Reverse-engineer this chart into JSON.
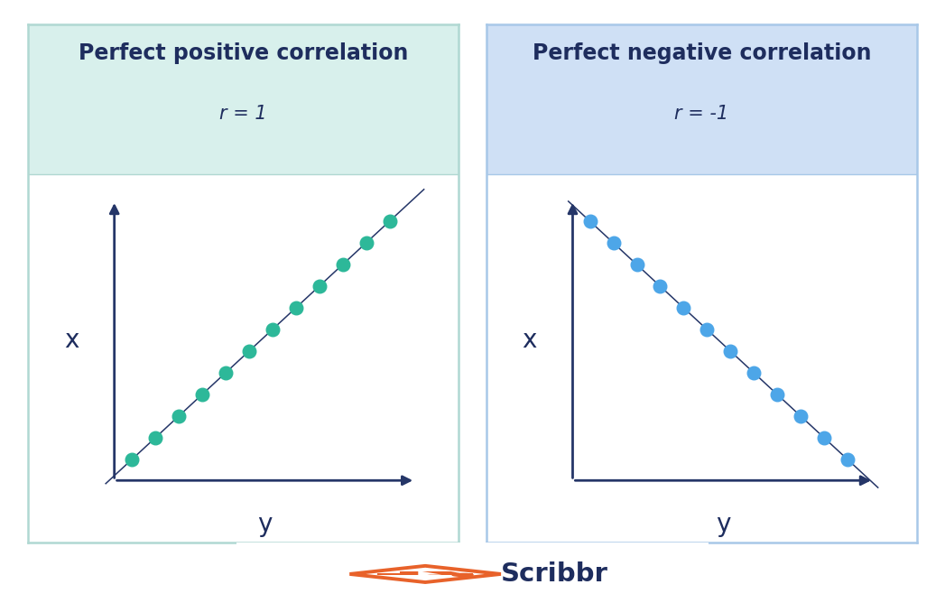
{
  "background_color": "#ffffff",
  "left_panel": {
    "title": "Perfect positive correlation",
    "subtitle": "r = 1",
    "title_bg_color": "#d8f0ec",
    "panel_bg_color": "#ffffff",
    "border_color": "#b0d8d2",
    "dot_color": "#2db899",
    "line_color": "#253668",
    "axis_color": "#253668",
    "x_label": "x",
    "y_label": "y"
  },
  "right_panel": {
    "title": "Perfect negative correlation",
    "subtitle": "r = -1",
    "title_bg_color": "#cfe0f5",
    "panel_bg_color": "#ffffff",
    "border_color": "#a8c8e8",
    "dot_color": "#4da6e8",
    "line_color": "#253668",
    "axis_color": "#253668",
    "x_label": "x",
    "y_label": "y"
  },
  "title_fontsize": 17,
  "subtitle_fontsize": 15,
  "label_fontsize": 20,
  "text_color": "#1e2d5e",
  "scribbr_text": "Scribbr",
  "scribbr_color": "#1e2d5e",
  "scribbr_orange": "#e8622a",
  "n_dots": 12
}
